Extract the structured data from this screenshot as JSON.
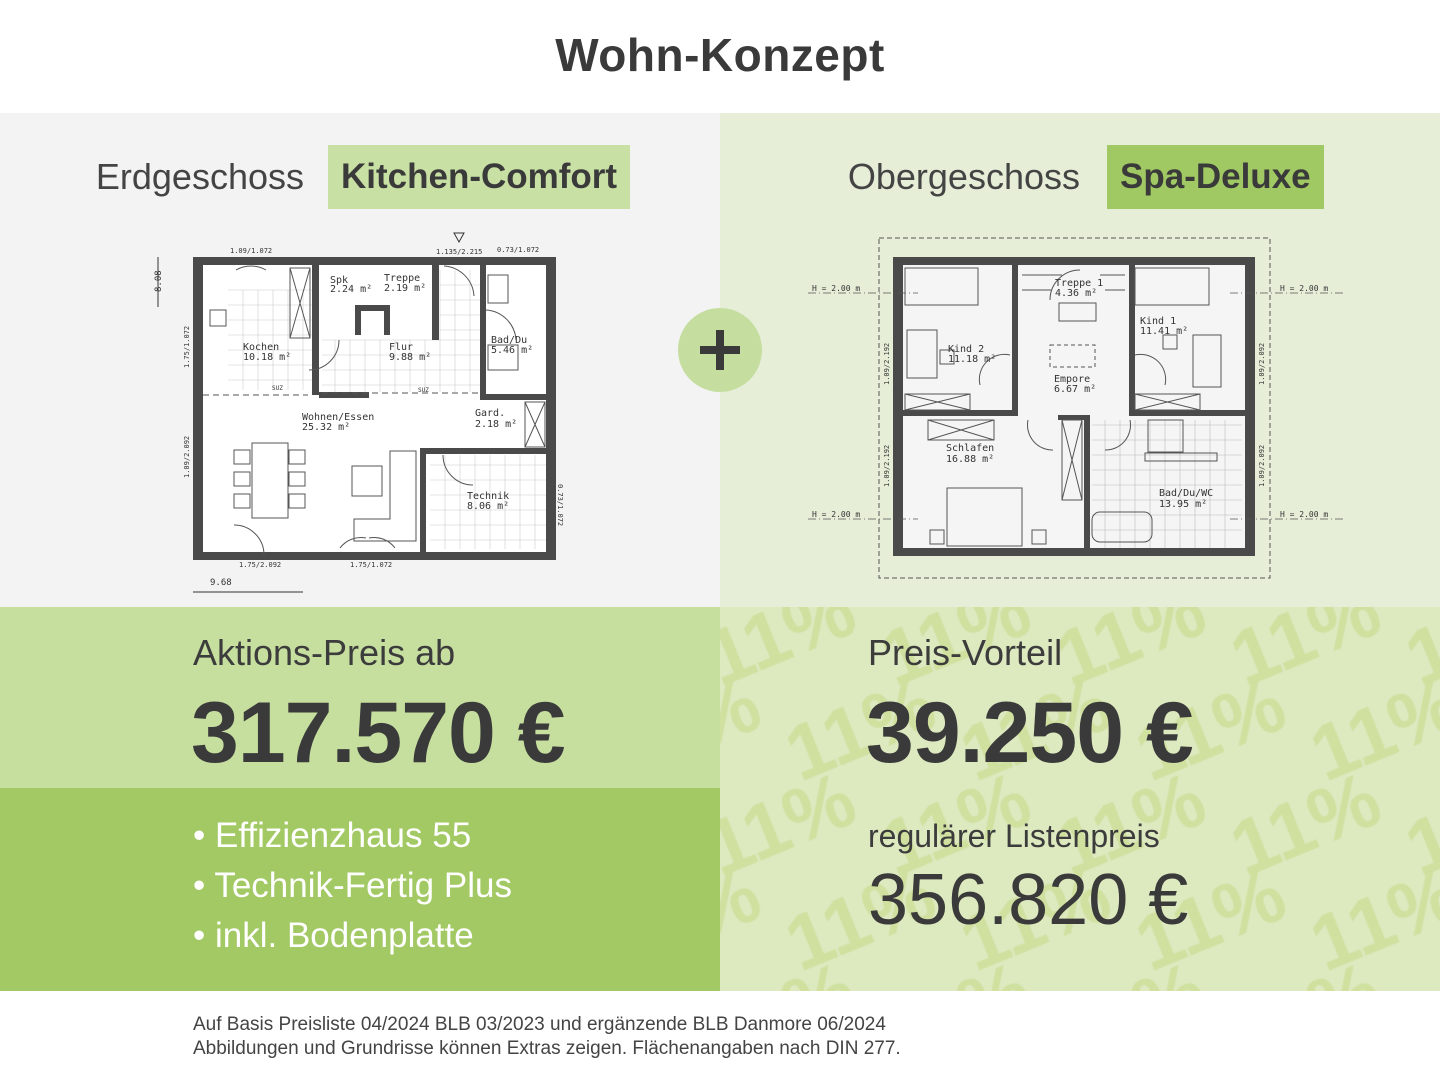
{
  "title": "Wohn-Konzept",
  "ground_floor": {
    "label": "Erdgeschoss",
    "badge": "Kitchen-Comfort",
    "rooms": [
      {
        "name": "Kochen",
        "area": "10.18 m²"
      },
      {
        "name": "Spk",
        "area": "2.24 m²"
      },
      {
        "name": "Treppe",
        "area": "2.19 m²"
      },
      {
        "name": "Flur",
        "area": "9.88 m²"
      },
      {
        "name": "Bad/Du",
        "area": "5.46 m²"
      },
      {
        "name": "Wohnen/Essen",
        "area": "25.32 m²"
      },
      {
        "name": "Gard.",
        "area": "2.18 m²"
      },
      {
        "name": "Technik",
        "area": "8.06 m²"
      }
    ],
    "dimensions": [
      "1.09/1.072",
      "1.135/2.215",
      "0.73/1.072",
      "8.08",
      "1.75/1.072",
      "1.09/2.092",
      "0.73/1.072",
      "1.75/2.092",
      "1.75/1.072",
      "9.68"
    ],
    "suz": "SUZ"
  },
  "upper_floor": {
    "label": "Obergeschoss",
    "badge": "Spa-Deluxe",
    "rooms": [
      {
        "name": "Kind 2",
        "area": "11.18 m²"
      },
      {
        "name": "Treppe 1",
        "area": "4.36 m²"
      },
      {
        "name": "Kind 1",
        "area": "11.41 m²"
      },
      {
        "name": "Empore",
        "area": "6.67 m²"
      },
      {
        "name": "Schlafen",
        "area": "16.88 m²"
      },
      {
        "name": "Bad/Du/WC",
        "area": "13.95 m²"
      }
    ],
    "height_marks": [
      "H = 2.00 m",
      "H = 2.00 m",
      "H = 2.00 m",
      "H = 2.00 m"
    ],
    "dimensions": [
      "1.09/2.192",
      "1.09/2.192",
      "1.09/2.092",
      "1.09/2.092"
    ]
  },
  "plus_icon": "plus-icon",
  "offer": {
    "label": "Aktions-Preis ab",
    "price": "317.570 €",
    "features": [
      "• Effizienzhaus 55",
      "• Technik-Fertig Plus",
      "• inkl. Bodenplatte"
    ]
  },
  "savings": {
    "label": "Preis-Vorteil",
    "amount": "39.250 €",
    "list_label": "regulärer Listenpreis",
    "list_price": "356.820 €",
    "watermark_text": "11%"
  },
  "footer": {
    "line1": "Auf Basis Preisliste 04/2024 BLB 03/2023 und ergänzende BLB Danmore 06/2024",
    "line2": "Abbildungen und Grundrisse können Extras zeigen. Flächenangaben nach DIN 277."
  },
  "colors": {
    "badge_light": "#c8e0a4",
    "badge_dark": "#a0c963",
    "price_band": "#c6df9f",
    "feature_band": "#a2c964",
    "savings_band": "#dde9bf",
    "text": "#3a3a3a"
  }
}
